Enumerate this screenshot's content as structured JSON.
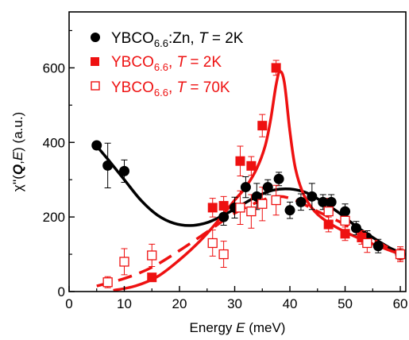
{
  "chart_data": {
    "type": "scatter",
    "title": "",
    "xlabel": {
      "prefix": "Energy ",
      "italic": "E",
      "suffix": " (meV)"
    },
    "ylabel": {
      "chi": "χ''(",
      "q": "Q",
      "comma": ",",
      "e": "E",
      "suffix": ") (a.u.)"
    },
    "xlim": [
      0,
      61
    ],
    "ylim": [
      0,
      750
    ],
    "x_ticks": [
      0,
      10,
      20,
      30,
      40,
      50,
      60
    ],
    "y_ticks": [
      0,
      200,
      400,
      600
    ],
    "grid": false,
    "legend_position": "top-left",
    "series": [
      {
        "legend": {
          "base": "YBCO",
          "sub": "6.6",
          "post": ":Zn, ",
          "t": "T",
          "eq": " = 2K"
        },
        "marker": "filled-circle",
        "color": "#000000",
        "points": [
          {
            "x": 5,
            "y": 392,
            "err": 0
          },
          {
            "x": 7,
            "y": 338,
            "err": 60
          },
          {
            "x": 10,
            "y": 323,
            "err": 30
          },
          {
            "x": 28,
            "y": 200,
            "err": 22
          },
          {
            "x": 30,
            "y": 225,
            "err": 28
          },
          {
            "x": 32,
            "y": 280,
            "err": 28
          },
          {
            "x": 34,
            "y": 255,
            "err": 35
          },
          {
            "x": 36,
            "y": 280,
            "err": 20
          },
          {
            "x": 38,
            "y": 302,
            "err": 18
          },
          {
            "x": 40,
            "y": 218,
            "err": 22
          },
          {
            "x": 42,
            "y": 240,
            "err": 22
          },
          {
            "x": 44,
            "y": 255,
            "err": 35
          },
          {
            "x": 46,
            "y": 240,
            "err": 20
          },
          {
            "x": 47.5,
            "y": 240,
            "err": 20
          },
          {
            "x": 50,
            "y": 215,
            "err": 20
          },
          {
            "x": 52,
            "y": 170,
            "err": 18
          },
          {
            "x": 54,
            "y": 145,
            "err": 18
          },
          {
            "x": 56,
            "y": 122,
            "err": 18
          },
          {
            "x": 60,
            "y": 100,
            "err": 15
          }
        ],
        "fit_curve": {
          "style": "solid",
          "points": [
            [
              5,
              390
            ],
            [
              7,
              355
            ],
            [
              10,
              300
            ],
            [
              13,
              245
            ],
            [
              16,
              205
            ],
            [
              19,
              183
            ],
            [
              22,
              177
            ],
            [
              25,
              185
            ],
            [
              28,
              205
            ],
            [
              31,
              230
            ],
            [
              34,
              255
            ],
            [
              37,
              272
            ],
            [
              40,
              275
            ],
            [
              43,
              265
            ],
            [
              46,
              240
            ],
            [
              49,
              210
            ],
            [
              52,
              175
            ],
            [
              55,
              145
            ],
            [
              58,
              118
            ],
            [
              60,
              105
            ]
          ]
        }
      },
      {
        "legend": {
          "base": "YBCO",
          "sub": "6.6",
          "post": ", ",
          "t": "T",
          "eq": " = 2K"
        },
        "marker": "filled-square",
        "color": "#ee1111",
        "points": [
          {
            "x": 15,
            "y": 38,
            "err": 0
          },
          {
            "x": 26,
            "y": 225,
            "err": 25
          },
          {
            "x": 28,
            "y": 230,
            "err": 25
          },
          {
            "x": 31,
            "y": 350,
            "err": 40
          },
          {
            "x": 33,
            "y": 337,
            "err": 25
          },
          {
            "x": 35,
            "y": 445,
            "err": 30
          },
          {
            "x": 37.5,
            "y": 600,
            "err": 20
          },
          {
            "x": 47,
            "y": 180,
            "err": 20
          },
          {
            "x": 50,
            "y": 155,
            "err": 18
          },
          {
            "x": 53,
            "y": 145,
            "err": 18
          },
          {
            "x": 60,
            "y": 100,
            "err": 15
          }
        ],
        "fit_curve": {
          "style": "solid",
          "points": [
            [
              8,
              3
            ],
            [
              12,
              15
            ],
            [
              16,
              40
            ],
            [
              20,
              85
            ],
            [
              24,
              140
            ],
            [
              27,
              190
            ],
            [
              30,
              245
            ],
            [
              32,
              280
            ],
            [
              34,
              330
            ],
            [
              35.5,
              390
            ],
            [
              36.5,
              460
            ],
            [
              37.5,
              555
            ],
            [
              38.2,
              590
            ],
            [
              39,
              560
            ],
            [
              40,
              430
            ],
            [
              41,
              330
            ],
            [
              42.5,
              260
            ],
            [
              44.5,
              215
            ],
            [
              47,
              185
            ],
            [
              50,
              160
            ],
            [
              53,
              140
            ],
            [
              56,
              122
            ],
            [
              60,
              100
            ]
          ]
        }
      },
      {
        "legend": {
          "base": "YBCO",
          "sub": "6.6",
          "post": ", ",
          "t": "T",
          "eq": " = 70K"
        },
        "marker": "open-square",
        "color": "#ee1111",
        "points": [
          {
            "x": 7,
            "y": 25,
            "err": 15
          },
          {
            "x": 10,
            "y": 80,
            "err": 35
          },
          {
            "x": 15,
            "y": 97,
            "err": 30
          },
          {
            "x": 26,
            "y": 130,
            "err": 35
          },
          {
            "x": 28,
            "y": 100,
            "err": 35
          },
          {
            "x": 31,
            "y": 225,
            "err": 45
          },
          {
            "x": 33,
            "y": 215,
            "err": 45
          },
          {
            "x": 35,
            "y": 235,
            "err": 45
          },
          {
            "x": 37.5,
            "y": 245,
            "err": 40
          },
          {
            "x": 47,
            "y": 215,
            "err": 35
          },
          {
            "x": 50,
            "y": 190,
            "err": 30
          },
          {
            "x": 54,
            "y": 130,
            "err": 25
          },
          {
            "x": 60,
            "y": 100,
            "err": 20
          }
        ],
        "fit_curve": {
          "style": "dashed",
          "points": [
            [
              5,
              15
            ],
            [
              10,
              35
            ],
            [
              15,
              65
            ],
            [
              20,
              110
            ],
            [
              25,
              160
            ],
            [
              30,
              210
            ],
            [
              35,
              245
            ],
            [
              38,
              255
            ],
            [
              41,
              245
            ],
            [
              45,
              215
            ],
            [
              50,
              180
            ],
            [
              55,
              140
            ],
            [
              60,
              100
            ]
          ]
        }
      }
    ]
  }
}
